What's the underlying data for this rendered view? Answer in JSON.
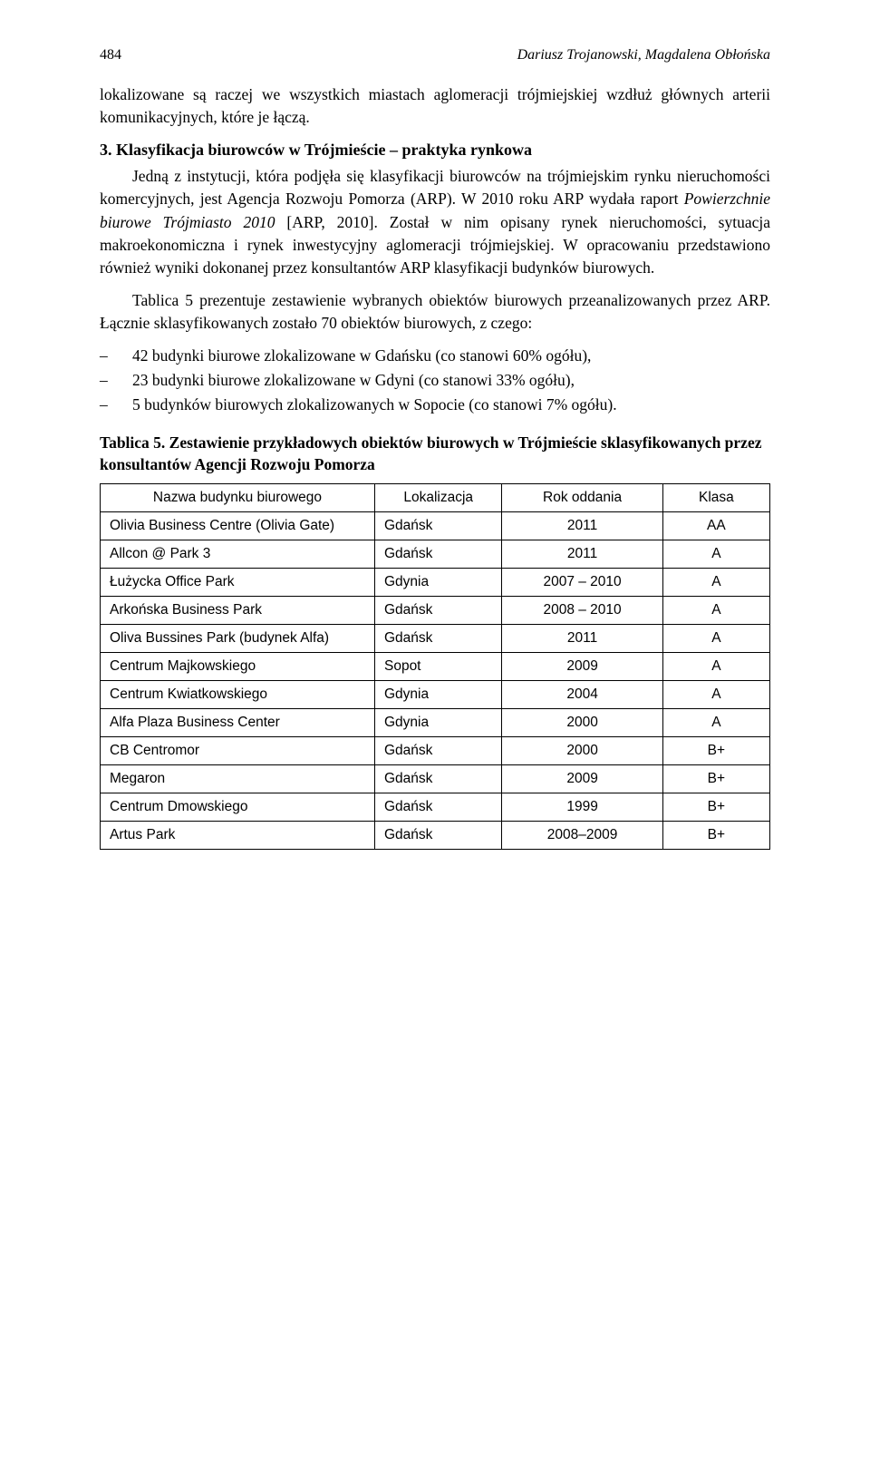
{
  "header": {
    "page_number": "484",
    "running_title": "Dariusz Trojanowski, Magdalena Obłońska"
  },
  "opening_paragraph": "lokalizowane są raczej we wszystkich miastach aglomeracji trójmiejskiej wzdłuż głównych arterii komunikacyjnych, które je łączą.",
  "section": {
    "heading": "3. Klasyfikacja biurowców w Trójmieście – praktyka rynkowa",
    "p1_a": "Jedną z instytucji, która podjęła się klasyfikacji biurowców na trójmiejskim rynku nieruchomości komercyjnych, jest Agencja Rozwoju Pomorza (ARP). W 2010 roku ARP wydała raport ",
    "p1_italic": "Powierzchnie biurowe Trójmiasto 2010",
    "p1_b": " [ARP, 2010]. Został w nim opisany rynek nieruchomości, sytuacja makroekonomiczna i rynek inwestycyjny aglomeracji trójmiejskiej. W opracowaniu przedstawiono również wyniki dokonanej przez konsultantów ARP klasyfikacji budynków biurowych.",
    "p2": "Tablica 5 prezentuje zestawienie wybranych obiektów biurowych przeanalizowanych przez ARP. Łącznie sklasyfikowanych zostało 70 obiektów biurowych, z czego:",
    "bullets": [
      "42 budynki biurowe zlokalizowane w Gdańsku (co stanowi 60% ogółu),",
      "23 budynki biurowe zlokalizowane w Gdyni (co stanowi 33% ogółu),",
      "5 budynków biurowych zlokalizowanych w Sopocie (co stanowi 7% ogółu)."
    ]
  },
  "table": {
    "caption_label": "Tablica 5.",
    "caption_text": " Zestawienie przykładowych obiektów biurowych w Trójmieście sklasyfikowanych przez konsultantów Agencji Rozwoju Pomorza",
    "columns": [
      "Nazwa budynku biurowego",
      "Lokalizacja",
      "Rok oddania",
      "Klasa"
    ],
    "rows": [
      [
        "Olivia Business Centre (Olivia Gate)",
        "Gdańsk",
        "2011",
        "AA"
      ],
      [
        "Allcon @ Park 3",
        "Gdańsk",
        "2011",
        "A"
      ],
      [
        "Łużycka Office Park",
        "Gdynia",
        "2007 – 2010",
        "A"
      ],
      [
        "Arkońska Business Park",
        "Gdańsk",
        "2008 – 2010",
        "A"
      ],
      [
        "Oliva Bussines Park (budynek Alfa)",
        "Gdańsk",
        "2011",
        "A"
      ],
      [
        "Centrum Majkowskiego",
        "Sopot",
        "2009",
        "A"
      ],
      [
        "Centrum Kwiatkowskiego",
        "Gdynia",
        "2004",
        "A"
      ],
      [
        "Alfa Plaza Business Center",
        "Gdynia",
        "2000",
        "A"
      ],
      [
        "CB Centromor",
        "Gdańsk",
        "2000",
        "B+"
      ],
      [
        "Megaron",
        "Gdańsk",
        "2009",
        "B+"
      ],
      [
        "Centrum Dmowskiego",
        "Gdańsk",
        "1999",
        "B+"
      ],
      [
        "Artus Park",
        "Gdańsk",
        "2008–2009",
        "B+"
      ]
    ]
  }
}
